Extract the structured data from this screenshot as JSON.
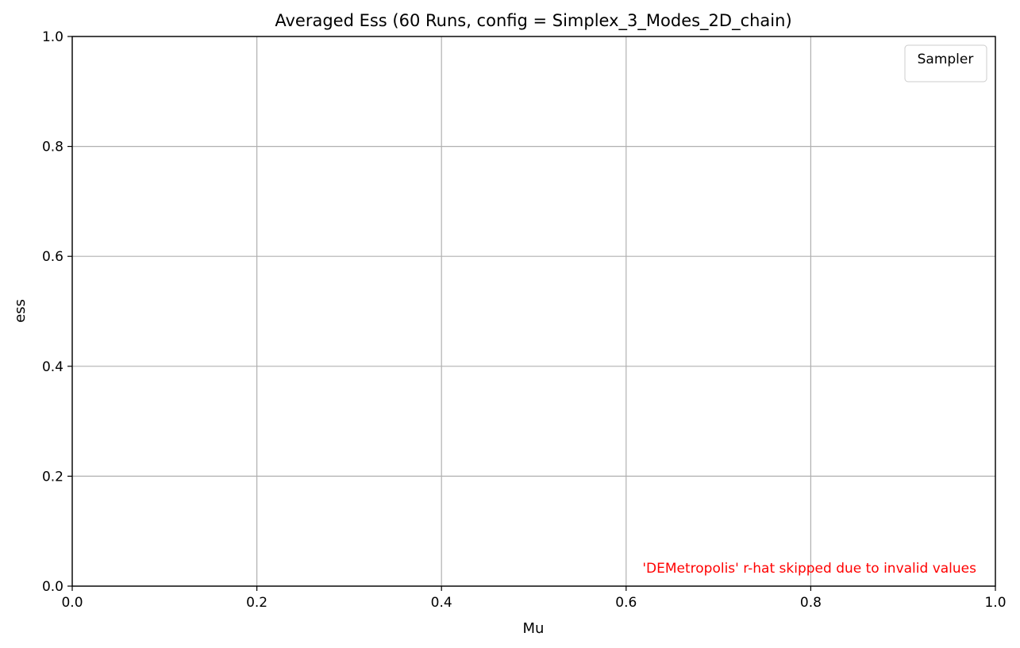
{
  "chart_data": {
    "type": "line",
    "title": "Averaged Ess (60 Runs, config = Simplex_3_Modes_2D_chain)",
    "xlabel": "Mu",
    "ylabel": "ess",
    "xlim": [
      0.0,
      1.0
    ],
    "ylim": [
      0.0,
      1.0
    ],
    "xticks": [
      "0.0",
      "0.2",
      "0.4",
      "0.6",
      "0.8",
      "1.0"
    ],
    "yticks": [
      "0.0",
      "0.2",
      "0.4",
      "0.6",
      "0.8",
      "1.0"
    ],
    "grid": true,
    "series": [],
    "legend": {
      "title": "Sampler",
      "placement": "upper-right",
      "entries": []
    },
    "annotation": {
      "text": "'DEMetropolis' r-hat skipped due to invalid values",
      "color": "#ff0000",
      "placement": "lower-right"
    }
  }
}
